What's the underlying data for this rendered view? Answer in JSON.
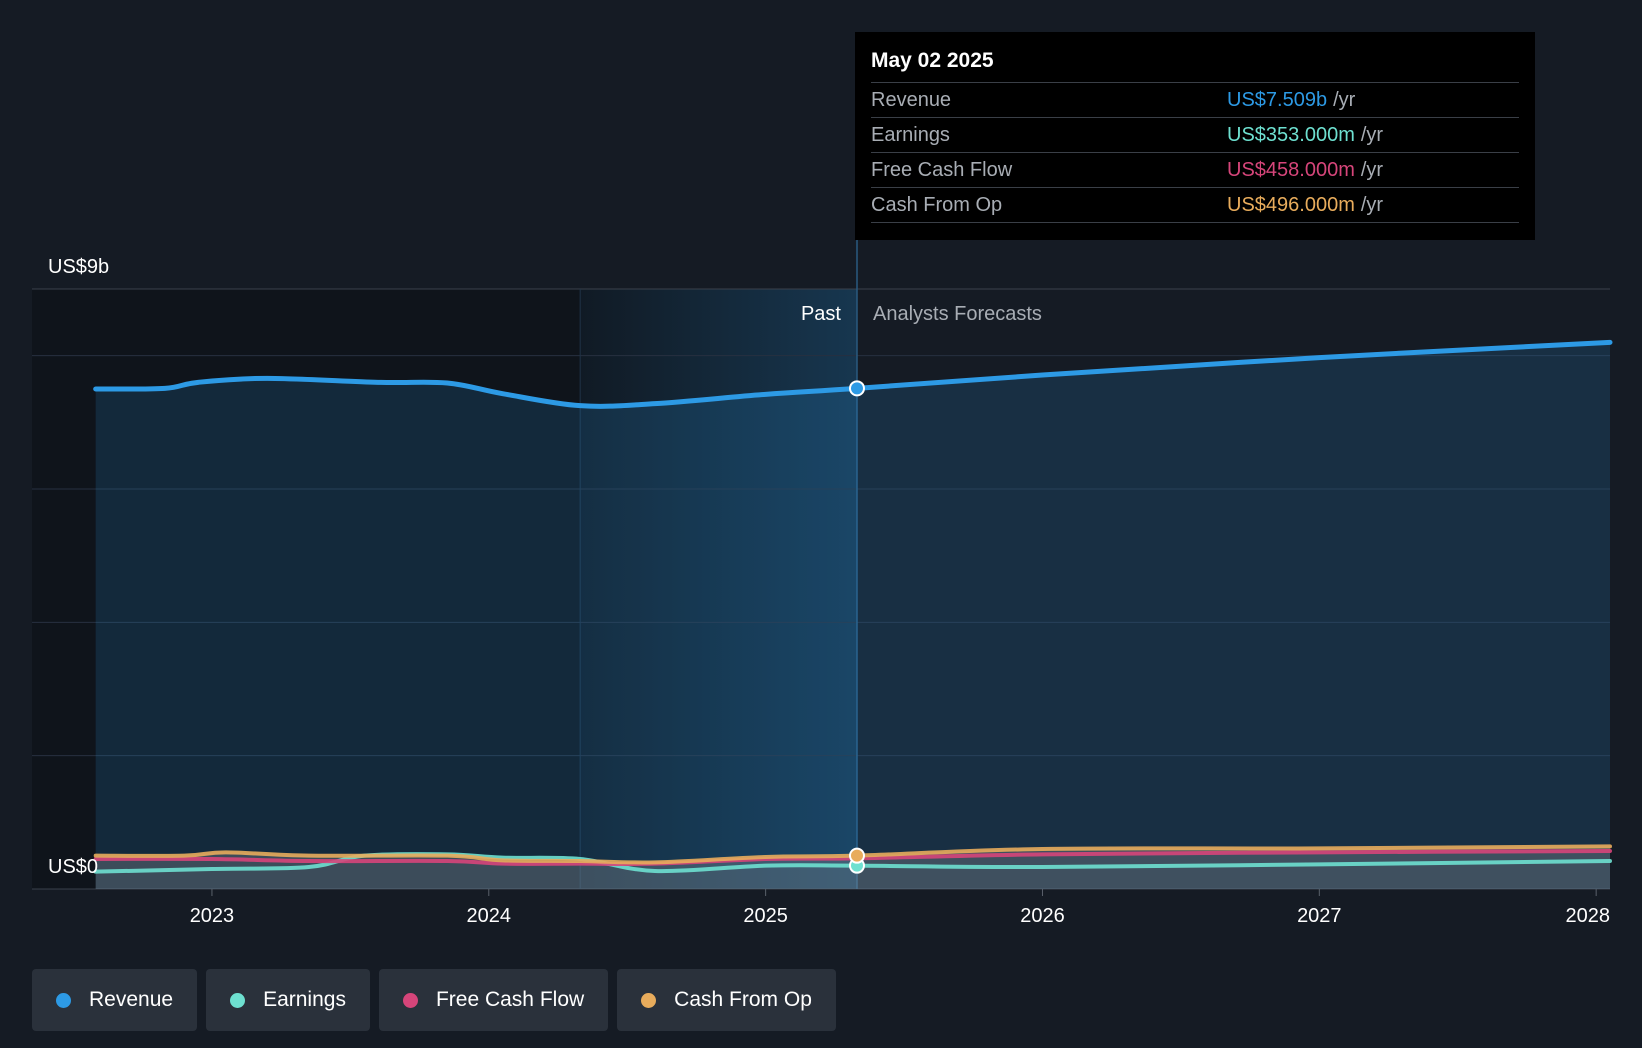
{
  "chart_data": {
    "type": "line",
    "y_top_label": "US$9b",
    "y_bottom_label": "US$0",
    "ylim": [
      0,
      9
    ],
    "xlim": [
      2022.35,
      2028.05
    ],
    "x_ticks": [
      {
        "value": 2023,
        "label": "2023"
      },
      {
        "value": 2024,
        "label": "2024"
      },
      {
        "value": 2025,
        "label": "2025"
      },
      {
        "value": 2026,
        "label": "2026"
      },
      {
        "value": 2027,
        "label": "2027"
      },
      {
        "value": 2028,
        "label": "2028"
      }
    ],
    "past_label": "Past",
    "forecast_label": "Analysts Forecasts",
    "divider_x": 2025.33,
    "highlight_start_x": 2024.33,
    "series": [
      {
        "name": "Revenue",
        "color": "#2d9ae5",
        "points": [
          [
            2022.58,
            7.5
          ],
          [
            2022.83,
            7.51
          ],
          [
            2022.95,
            7.6
          ],
          [
            2023.2,
            7.66
          ],
          [
            2023.6,
            7.6
          ],
          [
            2023.85,
            7.59
          ],
          [
            2024.05,
            7.43
          ],
          [
            2024.33,
            7.25
          ],
          [
            2024.6,
            7.28
          ],
          [
            2025.0,
            7.42
          ],
          [
            2025.33,
            7.51
          ],
          [
            2026.0,
            7.71
          ],
          [
            2027.0,
            7.97
          ],
          [
            2028.05,
            8.2
          ]
        ]
      },
      {
        "name": "Earnings",
        "color": "#6ee0d0",
        "points": [
          [
            2022.58,
            0.26
          ],
          [
            2023.0,
            0.3
          ],
          [
            2023.35,
            0.33
          ],
          [
            2023.55,
            0.5
          ],
          [
            2023.85,
            0.52
          ],
          [
            2024.05,
            0.47
          ],
          [
            2024.33,
            0.45
          ],
          [
            2024.6,
            0.27
          ],
          [
            2025.0,
            0.35
          ],
          [
            2025.33,
            0.35
          ],
          [
            2026.0,
            0.33
          ],
          [
            2027.0,
            0.37
          ],
          [
            2028.05,
            0.42
          ]
        ]
      },
      {
        "name": "Free Cash Flow",
        "color": "#d6457a",
        "points": [
          [
            2022.58,
            0.45
          ],
          [
            2023.0,
            0.45
          ],
          [
            2023.35,
            0.42
          ],
          [
            2023.85,
            0.42
          ],
          [
            2024.05,
            0.38
          ],
          [
            2024.33,
            0.38
          ],
          [
            2024.6,
            0.38
          ],
          [
            2025.0,
            0.45
          ],
          [
            2025.33,
            0.46
          ],
          [
            2026.0,
            0.52
          ],
          [
            2027.0,
            0.55
          ],
          [
            2028.05,
            0.57
          ]
        ]
      },
      {
        "name": "Cash From Op",
        "color": "#e8ac5c",
        "points": [
          [
            2022.58,
            0.5
          ],
          [
            2022.9,
            0.5
          ],
          [
            2023.05,
            0.55
          ],
          [
            2023.35,
            0.5
          ],
          [
            2023.85,
            0.5
          ],
          [
            2024.05,
            0.43
          ],
          [
            2024.33,
            0.42
          ],
          [
            2024.6,
            0.4
          ],
          [
            2025.0,
            0.48
          ],
          [
            2025.33,
            0.5
          ],
          [
            2026.0,
            0.6
          ],
          [
            2027.0,
            0.61
          ],
          [
            2028.05,
            0.64
          ]
        ]
      }
    ],
    "markers": [
      {
        "series": "Revenue",
        "x": 2025.33,
        "y": 7.51
      },
      {
        "series": "Earnings",
        "x": 2025.33,
        "y": 0.35
      },
      {
        "series": "Cash From Op",
        "x": 2025.33,
        "y": 0.5
      }
    ]
  },
  "tooltip": {
    "date": "May 02 2025",
    "rows": [
      {
        "label": "Revenue",
        "value": "US$7.509b",
        "unit": "/yr",
        "color": "#2d9ae5"
      },
      {
        "label": "Earnings",
        "value": "US$353.000m",
        "unit": "/yr",
        "color": "#6ee0d0"
      },
      {
        "label": "Free Cash Flow",
        "value": "US$458.000m",
        "unit": "/yr",
        "color": "#d6457a"
      },
      {
        "label": "Cash From Op",
        "value": "US$496.000m",
        "unit": "/yr",
        "color": "#e8ac5c"
      }
    ]
  },
  "legend": [
    {
      "label": "Revenue",
      "color": "#2d9ae5"
    },
    {
      "label": "Earnings",
      "color": "#6ee0d0"
    },
    {
      "label": "Free Cash Flow",
      "color": "#d6457a"
    },
    {
      "label": "Cash From Op",
      "color": "#e8ac5c"
    }
  ]
}
